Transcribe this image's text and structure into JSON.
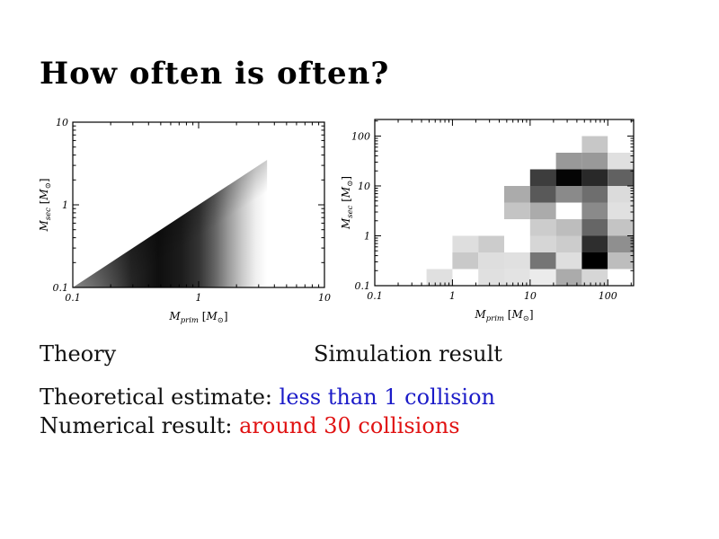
{
  "slide": {
    "title": "How often is often?",
    "captions": {
      "left": "Theory",
      "right": "Simulation result"
    },
    "results": [
      {
        "label": "Theoretical estimate: ",
        "value": "less than 1 collision",
        "color": "#1b1bc8"
      },
      {
        "label": "Numerical result: ",
        "value": "around 30 collisions",
        "color": "#e01212"
      }
    ]
  },
  "chart_data": [
    {
      "id": "chart-theory",
      "type": "heatmap",
      "subtype": "continuous-density",
      "caption": "Theory",
      "xscale": "log",
      "yscale": "log",
      "xlim": [
        0.1,
        10
      ],
      "ylim": [
        0.1,
        10
      ],
      "xticks": [
        0.1,
        1,
        10
      ],
      "xtick_labels": [
        "0.1",
        "1",
        "10"
      ],
      "yticks": [
        10,
        1,
        0.1
      ],
      "ytick_labels": [
        "10",
        "1",
        "0.1"
      ],
      "xlabel": "M_prim [M_sun]",
      "ylabel": "M_sec [M_sun]",
      "xlabel_parts": [
        {
          "t": "M",
          "s": "i"
        },
        {
          "t": "prim",
          "s": "sub"
        },
        {
          "t": " [",
          "s": "r"
        },
        {
          "t": "M",
          "s": "i"
        },
        {
          "t": "⊙",
          "s": "sub"
        },
        {
          "t": "]",
          "s": "r"
        }
      ],
      "ylabel_parts": [
        {
          "t": "M",
          "s": "i"
        },
        {
          "t": "sec",
          "s": "sub"
        },
        {
          "t": " [",
          "s": "r"
        },
        {
          "t": "M",
          "s": "i"
        },
        {
          "t": "⊙",
          "s": "sub"
        },
        {
          "t": "]",
          "s": "r"
        }
      ],
      "grid": false,
      "legend": "none",
      "region": {
        "shape": "triangle-below-diagonal",
        "diagonal_from": [
          0.1,
          0.1
        ],
        "diagonal_to": [
          3.5,
          3.5
        ],
        "note": "density only where M_sec < M_prim; darkest band around M_prim 0.4-1, fades to white by M_prim ~3"
      },
      "gradient_along_x": [
        [
          0.0,
          "#a8a8a8"
        ],
        [
          0.18,
          "#5a5a5a"
        ],
        [
          0.3,
          "#262626"
        ],
        [
          0.44,
          "#0f0f0f"
        ],
        [
          0.56,
          "#1c1c1c"
        ],
        [
          0.65,
          "#343434"
        ],
        [
          0.73,
          "#636363"
        ],
        [
          0.8,
          "#999999"
        ],
        [
          0.87,
          "#c8c8c8"
        ],
        [
          0.94,
          "#efefef"
        ],
        [
          1.0,
          "#ffffff"
        ]
      ],
      "edge_band_alpha": 0.2
    },
    {
      "id": "chart-simulation",
      "type": "heatmap",
      "caption": "Simulation result",
      "xscale": "log",
      "yscale": "log",
      "xlim": [
        0.1,
        215.0
      ],
      "ylim": [
        0.1,
        215.0
      ],
      "xticks": [
        0.1,
        1,
        10,
        100
      ],
      "xtick_labels": [
        "0.1",
        "1",
        "10",
        "100"
      ],
      "yticks": [
        100,
        10,
        1,
        0.1
      ],
      "ytick_labels": [
        "100",
        "10",
        "1",
        "0.1"
      ],
      "xlabel": "M_prim [M_sun]",
      "ylabel": "M_sec [M_sun]",
      "xlabel_parts": [
        {
          "t": "M",
          "s": "i"
        },
        {
          "t": "prim",
          "s": "sub"
        },
        {
          "t": " [",
          "s": "r"
        },
        {
          "t": "M",
          "s": "i"
        },
        {
          "t": "⊙",
          "s": "sub"
        },
        {
          "t": "]",
          "s": "r"
        }
      ],
      "ylabel_parts": [
        {
          "t": "M",
          "s": "i"
        },
        {
          "t": "sec",
          "s": "sub"
        },
        {
          "t": " [",
          "s": "r"
        },
        {
          "t": "M",
          "s": "i"
        },
        {
          "t": "⊙",
          "s": "sub"
        },
        {
          "t": "]",
          "s": "r"
        }
      ],
      "grid": false,
      "legend": "none",
      "cell_size_decades": 0.3333,
      "x_cell_edges": [
        0.1,
        0.215,
        0.464,
        1,
        2.15,
        4.64,
        10,
        21.5,
        46.4,
        100,
        215
      ],
      "y_cell_edges": [
        0.1,
        0.215,
        0.464,
        1,
        2.15,
        4.64,
        10,
        21.5,
        46.4,
        100,
        215
      ],
      "rows_order": "top-to-bottom (high M_sec first)",
      "intensity": [
        [
          0,
          0,
          0,
          0,
          0,
          0,
          0,
          0,
          0,
          0
        ],
        [
          0,
          0,
          0,
          0,
          0,
          0,
          0,
          0,
          0.22,
          0
        ],
        [
          0,
          0,
          0,
          0,
          0,
          0,
          0,
          0.4,
          0.4,
          0.12
        ],
        [
          0,
          0,
          0,
          0,
          0,
          0,
          0.76,
          0.98,
          0.84,
          0.62
        ],
        [
          0,
          0,
          0,
          0,
          0,
          0.33,
          0.65,
          0.46,
          0.57,
          0.14
        ],
        [
          0,
          0,
          0,
          0,
          0,
          0.23,
          0.33,
          0,
          0.46,
          0.12
        ],
        [
          0,
          0,
          0,
          0,
          0,
          0,
          0.2,
          0.26,
          0.6,
          0.23
        ],
        [
          0,
          0,
          0,
          0.13,
          0.2,
          0,
          0.16,
          0.2,
          0.82,
          0.44
        ],
        [
          0,
          0,
          0,
          0.21,
          0.13,
          0.12,
          0.54,
          0.13,
          1.0,
          0.26
        ],
        [
          0,
          0,
          0.12,
          0,
          0.12,
          0.11,
          0.08,
          0.33,
          0.16,
          0
        ]
      ]
    }
  ]
}
